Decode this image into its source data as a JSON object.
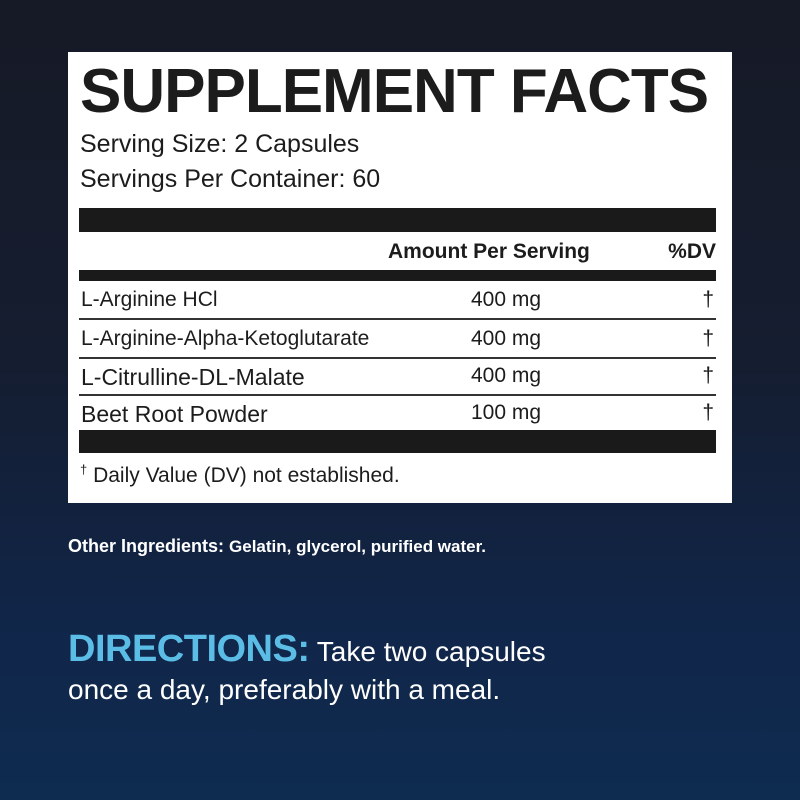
{
  "label": {
    "title": "SUPPLEMENT FACTS",
    "serving_size": "Serving Size: 2 Capsules",
    "servings_per_container": "Servings Per Container: 60",
    "header_amount": "Amount Per Serving",
    "header_dv": "%DV",
    "rows": [
      {
        "name": "L-Arginine HCl",
        "amount": "400 mg",
        "dv": "†"
      },
      {
        "name": "L-Arginine-Alpha-Ketoglutarate",
        "amount": "400 mg",
        "dv": "†"
      },
      {
        "name": "L-Citrulline-DL-Malate",
        "amount": "400 mg",
        "dv": "†"
      },
      {
        "name": "Beet Root Powder",
        "amount": "100 mg",
        "dv": "†"
      }
    ],
    "footnote_mark": "†",
    "footnote": "Daily Value (DV) not established."
  },
  "other_ingredients": {
    "label": "Other Ingredients:",
    "value": "Gelatin, glycerol, purified water."
  },
  "directions": {
    "label": "DIRECTIONS:",
    "line1": "Take two capsules",
    "line2": "once a day, preferably with a meal."
  },
  "colors": {
    "accent": "#5bbde6",
    "panel": "#ffffff",
    "bar": "#1a1a1a"
  }
}
